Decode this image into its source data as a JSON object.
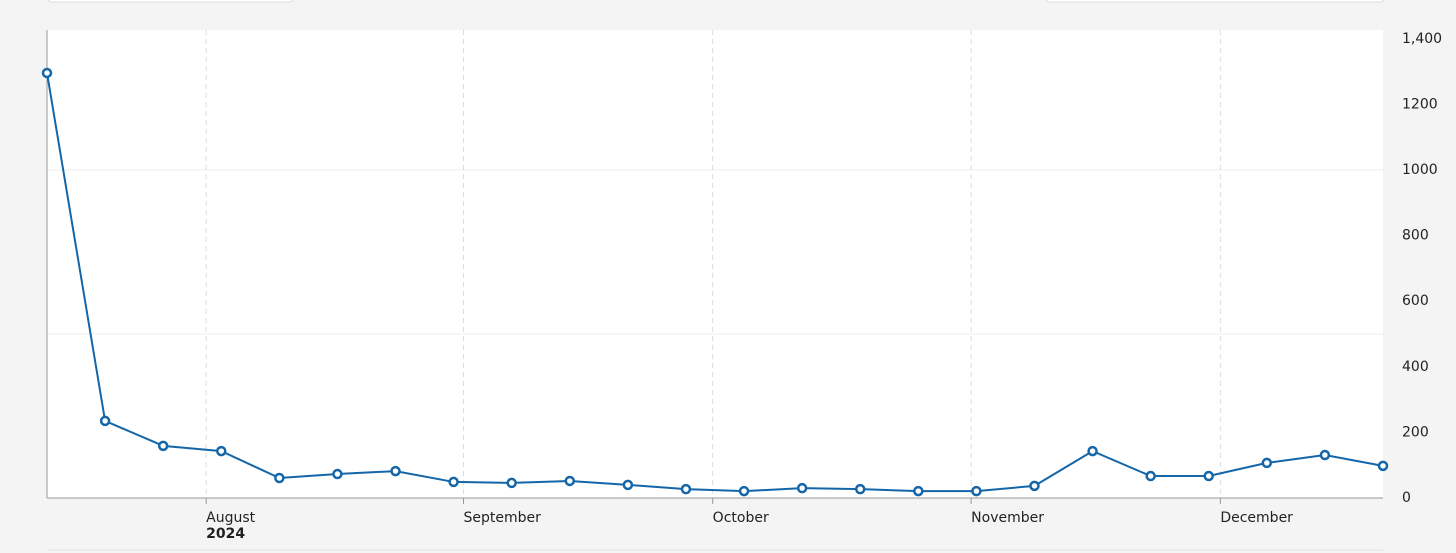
{
  "chart_data": {
    "type": "line",
    "x": [
      0,
      1,
      2,
      3,
      4,
      5,
      6,
      7,
      8,
      9,
      10,
      11,
      12,
      13,
      14,
      15,
      16,
      17,
      18,
      19,
      20,
      21,
      22,
      23
    ],
    "series": [
      {
        "color": "#1466a8",
        "values": [
          1296,
          235,
          159,
          143,
          61,
          73,
          82,
          49,
          46,
          52,
          40,
          27,
          21,
          30,
          27,
          21,
          21,
          37,
          143,
          67,
          67,
          107,
          131,
          98
        ]
      }
    ],
    "xlim": [
      0,
      23
    ],
    "xticks": [
      {
        "value": 2.74,
        "label": "August",
        "sublabel": "2024"
      },
      {
        "value": 7.17,
        "label": "September"
      },
      {
        "value": 11.46,
        "label": "October"
      },
      {
        "value": 15.91,
        "label": "November"
      },
      {
        "value": 20.2,
        "label": "December"
      }
    ],
    "ylim": [
      0,
      1427
    ],
    "yticks": [
      0,
      200,
      400,
      600,
      800,
      1000,
      1200,
      {
        "value": 1400,
        "label": "1,400"
      }
    ],
    "ygrid": [
      500,
      1000
    ],
    "grid": true
  }
}
